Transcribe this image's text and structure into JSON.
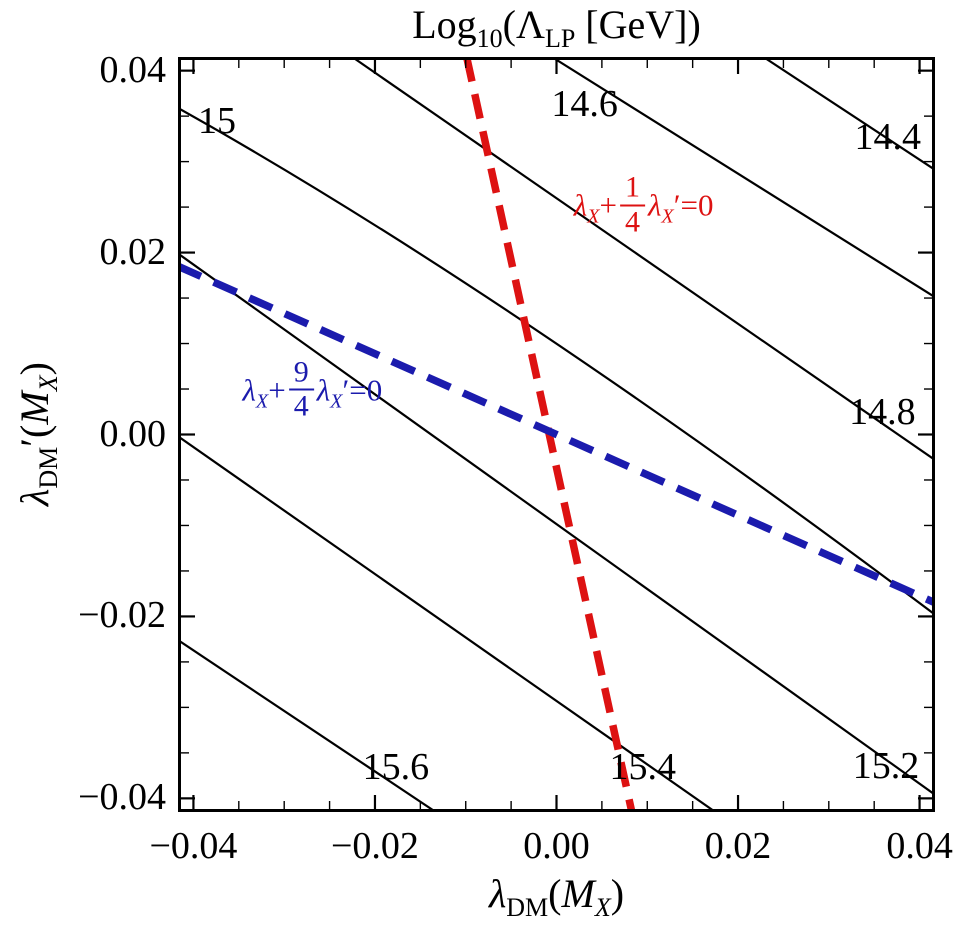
{
  "figure": {
    "title": {
      "text": "Log10(ΛLP [GeV])",
      "parts": {
        "t1": "Log",
        "t1_sub": "10",
        "t2": "(Λ",
        "t2_sub": "LP",
        "t3": " [GeV])"
      }
    },
    "x_axis": {
      "label_text": "λDM(MX)",
      "parts": {
        "p1": "λ",
        "p1_sub": "DM",
        "p2": "(",
        "p3": "M",
        "p3_sub": "X",
        "p4": ")"
      }
    },
    "y_axis": {
      "label_text": "λDM′(MX)",
      "parts": {
        "p1": "λ",
        "p1_sub": "DM",
        "p1_prime": "′",
        "p2": "(",
        "p3": "M",
        "p3_sub": "X",
        "p4": ")"
      }
    }
  },
  "chart_data": {
    "type": "contour",
    "title": "Log10(Lambda_LP [GeV])",
    "xlabel": "lambda_DM(M_X)",
    "ylabel": "lambda_DM'(M_X)",
    "xlim": [
      -0.0417,
      0.0417
    ],
    "ylim": [
      -0.0415,
      0.0415
    ],
    "grid": false,
    "x_ticks": {
      "values": [
        -0.04,
        -0.02,
        0.0,
        0.02,
        0.04
      ],
      "labels": [
        "−0.04",
        "−0.02",
        "0.00",
        "0.02",
        "0.04"
      ],
      "minor_step": 0.005
    },
    "y_ticks": {
      "values": [
        -0.04,
        -0.02,
        0.0,
        0.02,
        0.04
      ],
      "labels": [
        "−0.04",
        "−0.02",
        "0.00",
        "0.02",
        "0.04"
      ],
      "minor_step": 0.005
    },
    "levels": [
      14.4,
      14.6,
      14.8,
      15.0,
      15.2,
      15.4,
      15.6
    ],
    "contours": [
      {
        "level": 14.4,
        "label": "14.4",
        "points": [
          [
            0.0228,
            0.0415
          ],
          [
            0.0417,
            0.0291
          ]
        ],
        "label_pos": [
          0.0365,
          0.0327
        ]
      },
      {
        "level": 14.6,
        "label": "14.6",
        "points": [
          [
            -0.0005,
            0.0415
          ],
          [
            0.0417,
            0.0151
          ]
        ],
        "label_pos": [
          0.0031,
          0.0363
        ]
      },
      {
        "level": 14.8,
        "label": "14.8",
        "points": [
          [
            -0.0225,
            0.0415
          ],
          [
            0.0417,
            -0.0028
          ]
        ],
        "label_pos": [
          0.0359,
          0.0025
        ]
      },
      {
        "level": 15.0,
        "label": "15",
        "points": [
          [
            -0.0417,
            0.0359
          ],
          [
            -0.003,
            0.012
          ],
          [
            0.0417,
            -0.0198
          ]
        ],
        "label_pos": [
          -0.0374,
          0.0345
        ]
      },
      {
        "level": 15.2,
        "label": "15.2",
        "points": [
          [
            -0.0417,
            0.0199
          ],
          [
            0.0417,
            -0.0396
          ]
        ],
        "label_pos": [
          0.0363,
          -0.0364
        ]
      },
      {
        "level": 15.4,
        "label": "15.4",
        "points": [
          [
            -0.0417,
            -0.0002
          ],
          [
            0.0175,
            -0.0415
          ]
        ],
        "label_pos": [
          0.0095,
          -0.0365
        ]
      },
      {
        "level": 15.6,
        "label": "15.6",
        "points": [
          [
            -0.0417,
            -0.0226
          ],
          [
            -0.0133,
            -0.0415
          ]
        ],
        "label_pos": [
          -0.0177,
          -0.0365
        ]
      }
    ],
    "constraint_lines": [
      {
        "id": "red-constraint",
        "equation": "λX + (1/4)λX′ = 0",
        "color": "#dd1212",
        "points": [
          [
            -0.0099,
            0.0415
          ],
          [
            0.0083,
            -0.0415
          ]
        ],
        "label_pos": [
          0.0096,
          0.0252
        ],
        "parts": {
          "a1": "λ",
          "a1_sub": "X",
          "a2": "+",
          "num": "1",
          "den": "4",
          "a3": "λ",
          "a3_sub": "X",
          "a4": "′=0"
        }
      },
      {
        "id": "blue-constraint",
        "equation": "λX + (9/4)λX′ = 0",
        "color": "#1b1bad",
        "points": [
          [
            -0.0417,
            0.0185
          ],
          [
            0.0417,
            -0.0185
          ]
        ],
        "label_pos": [
          -0.0269,
          0.0049
        ],
        "parts": {
          "a1": "λ",
          "a1_sub": "X",
          "a2": "+",
          "num": "9",
          "den": "4",
          "a3": "λ",
          "a3_sub": "X",
          "a4": "′=0"
        }
      }
    ],
    "line_color": "#000000",
    "frame_color": "#000000"
  }
}
